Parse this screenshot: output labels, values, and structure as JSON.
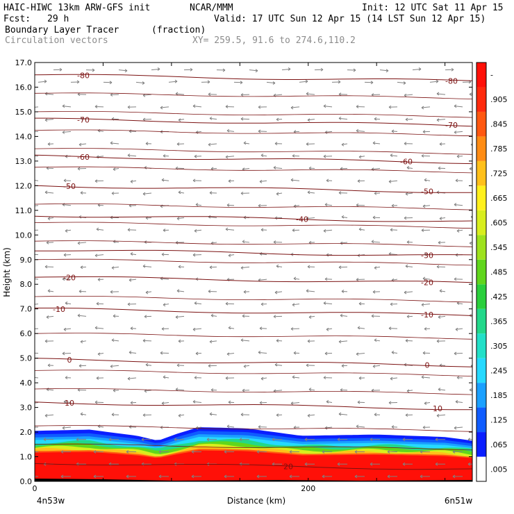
{
  "header": {
    "model": "HAIC-HIWC 13km ARW-GFS init",
    "center": "NCAR/MMM",
    "init": "Init: 12 UTC Sat 11 Apr 15",
    "fcst_label": "Fcst:",
    "fcst_value": "29 h",
    "valid": "Valid: 17 UTC Sun 12 Apr 15 (14 LST Sun 12 Apr 15)",
    "field": "Boundary Layer Tracer",
    "units": "(fraction)",
    "vectors": "Circulation vectors",
    "xy": "XY= 259.5, 91.6 to 274.6,110.2"
  },
  "chart_data": {
    "type": "cross-section",
    "xlabel": "Distance (km)",
    "ylabel": "Height (km)",
    "xlim": [
      0,
      320
    ],
    "ylim": [
      0,
      17
    ],
    "x_ticks": [
      {
        "v": 0,
        "label": "0"
      },
      {
        "v": 200,
        "label": "200"
      }
    ],
    "x_end_labels": {
      "left": "4n53w",
      "right": "6n51w"
    },
    "y_ticks": [
      "0.0",
      "1.0",
      "2.0",
      "3.0",
      "4.0",
      "5.0",
      "6.0",
      "7.0",
      "8.0",
      "9.0",
      "10.0",
      "11.0",
      "12.0",
      "13.0",
      "14.0",
      "15.0",
      "16.0",
      "17.0"
    ],
    "colorbar": {
      "labels": [
        ".005",
        ".065",
        ".125",
        ".185",
        ".245",
        ".305",
        ".365",
        ".425",
        ".485",
        ".545",
        ".605",
        ".665",
        ".725",
        ".785",
        ".845",
        ".905",
        "-"
      ],
      "colors": [
        "#ffffff",
        "#0a1eff",
        "#0f5cff",
        "#1aa0ff",
        "#26d9ff",
        "#22e0c8",
        "#22d88a",
        "#2acf3c",
        "#60d61c",
        "#9ee21e",
        "#d8ee1e",
        "#fff01c",
        "#ffc01a",
        "#ff8c14",
        "#ff5810",
        "#ff2a0c",
        "#ff1008"
      ]
    },
    "temperature_contours_c": [
      {
        "value": -80,
        "label": "-80",
        "height_km": 16.5
      },
      {
        "value": -70,
        "label": "-70",
        "height_km": 14.7
      },
      {
        "value": -60,
        "label": "-60",
        "height_km": 13.2
      },
      {
        "value": -50,
        "label": "-50",
        "height_km": 12.0
      },
      {
        "value": -40,
        "label": "-40",
        "height_km": 10.8
      },
      {
        "value": -30,
        "label": "-30",
        "height_km": 9.4
      },
      {
        "value": -20,
        "label": "-20",
        "height_km": 8.3
      },
      {
        "value": -10,
        "label": "-10",
        "height_km": 7.0
      },
      {
        "value": 0,
        "label": "0",
        "height_km": 4.95
      },
      {
        "value": 10,
        "label": "10",
        "height_km": 3.2
      },
      {
        "value": 20,
        "label": "20",
        "height_km": 0.75
      }
    ],
    "boundary_layer_top_km": [
      {
        "x": 0,
        "h": 2.05
      },
      {
        "x": 40,
        "h": 2.1
      },
      {
        "x": 75,
        "h": 1.85
      },
      {
        "x": 90,
        "h": 1.65
      },
      {
        "x": 105,
        "h": 1.95
      },
      {
        "x": 120,
        "h": 2.2
      },
      {
        "x": 155,
        "h": 2.15
      },
      {
        "x": 195,
        "h": 1.85
      },
      {
        "x": 250,
        "h": 1.9
      },
      {
        "x": 300,
        "h": 1.8
      },
      {
        "x": 320,
        "h": 1.65
      }
    ]
  }
}
